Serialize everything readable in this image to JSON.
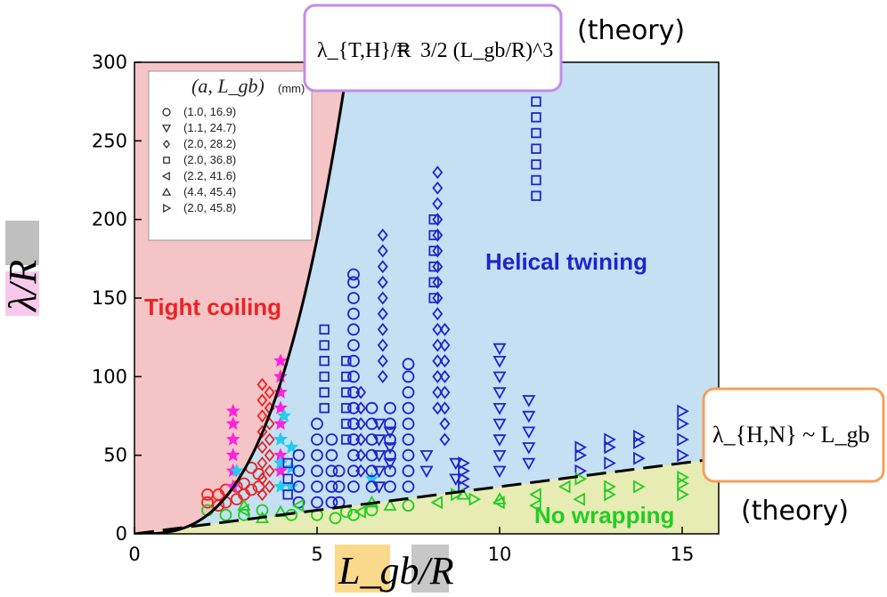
{
  "chart_data": {
    "type": "scatter",
    "xlabel": "L_gb/R",
    "ylabel": "λ/R",
    "xlim": [
      0,
      16
    ],
    "ylim": [
      0,
      300
    ],
    "xticks": [
      0,
      5,
      10,
      15
    ],
    "yticks": [
      0,
      50,
      100,
      150,
      200,
      250,
      300
    ],
    "regions": {
      "tight": {
        "label": "Tight coiling",
        "color": "#f4c4c6"
      },
      "helical": {
        "label": "Helical twining",
        "color": "#c4e0f2"
      },
      "nowrap": {
        "label": "No wrapping",
        "color": "#e6ecb3"
      }
    },
    "curves": {
      "theory_TH": {
        "a": 1.5,
        "exponent": 3,
        "label_lhs": "λ_{T,H}/R",
        "label_rhs": "3/2 (L_gb/R)^3",
        "note": "(theory)"
      },
      "theory_HN": {
        "slope": 3.0,
        "label": "λ_{H,N} ~ L_gb",
        "note": "(theory)"
      }
    },
    "legend": {
      "title": "(a, L_gb)",
      "unit": "(mm)",
      "entries": [
        {
          "marker": "circle",
          "label": "(1.0, 16.9)"
        },
        {
          "marker": "triangle-down",
          "label": "(1.1, 24.7)"
        },
        {
          "marker": "diamond",
          "label": "(2.0, 28.2)"
        },
        {
          "marker": "square",
          "label": "(2.0, 36.8)"
        },
        {
          "marker": "triangle-left",
          "label": "(2.2, 41.6)"
        },
        {
          "marker": "triangle-up",
          "label": "(4.4, 45.4)"
        },
        {
          "marker": "triangle-right",
          "label": "(2.0, 45.8)"
        }
      ]
    },
    "colors": {
      "tight": "#ee2222",
      "helical": "#2222cc",
      "nowrap": "#22cc22",
      "marker": "#ff22dd",
      "cyan": "#22ccee"
    },
    "series": [
      {
        "marker": "circle",
        "color": "#ee2222",
        "points": [
          [
            2,
            20
          ],
          [
            2,
            25
          ],
          [
            2.3,
            18
          ],
          [
            2.3,
            25
          ],
          [
            2.5,
            20
          ],
          [
            2.5,
            28
          ],
          [
            2.8,
            22
          ],
          [
            2.8,
            30
          ],
          [
            3,
            25
          ],
          [
            3,
            32
          ],
          [
            3.2,
            28
          ],
          [
            3.2,
            42
          ],
          [
            3.4,
            30
          ],
          [
            3.4,
            38
          ]
        ]
      },
      {
        "marker": "diamond",
        "color": "#ee2222",
        "points": [
          [
            3.5,
            25
          ],
          [
            3.5,
            35
          ],
          [
            3.5,
            45
          ],
          [
            3.5,
            55
          ],
          [
            3.5,
            65
          ],
          [
            3.5,
            75
          ],
          [
            3.5,
            85
          ],
          [
            3.5,
            95
          ],
          [
            3.7,
            30
          ],
          [
            3.7,
            40
          ],
          [
            3.7,
            50
          ],
          [
            3.7,
            60
          ],
          [
            3.7,
            70
          ],
          [
            3.7,
            80
          ],
          [
            3.7,
            90
          ]
        ]
      },
      {
        "marker": "star",
        "color": "#ff22dd",
        "points": [
          [
            2.7,
            30
          ],
          [
            2.7,
            40
          ],
          [
            2.7,
            50
          ],
          [
            2.7,
            60
          ],
          [
            2.7,
            70
          ],
          [
            2.7,
            78
          ],
          [
            4,
            40
          ],
          [
            4,
            50
          ],
          [
            4,
            60
          ],
          [
            4,
            70
          ],
          [
            4,
            80
          ],
          [
            4,
            90
          ],
          [
            4,
            100
          ],
          [
            4,
            110
          ]
        ]
      },
      {
        "marker": "star",
        "color": "#22ccee",
        "points": [
          [
            2.8,
            40
          ],
          [
            4,
            30
          ],
          [
            4,
            45
          ],
          [
            4,
            60
          ],
          [
            4.3,
            30
          ],
          [
            4.3,
            42
          ],
          [
            4.3,
            55
          ],
          [
            6.5,
            35
          ],
          [
            4.1,
            75
          ]
        ]
      },
      {
        "marker": "circle",
        "color": "#2222cc",
        "points": [
          [
            4.5,
            20
          ],
          [
            4.5,
            30
          ],
          [
            4.5,
            40
          ],
          [
            4.5,
            50
          ],
          [
            5,
            20
          ],
          [
            5,
            30
          ],
          [
            5,
            40
          ],
          [
            5,
            50
          ],
          [
            5,
            60
          ],
          [
            5,
            70
          ],
          [
            5.4,
            20
          ],
          [
            5.4,
            30
          ],
          [
            5.4,
            40
          ],
          [
            5.4,
            50
          ],
          [
            5.4,
            60
          ],
          [
            5.6,
            20
          ],
          [
            5.6,
            30
          ],
          [
            5.6,
            40
          ],
          [
            6,
            30
          ],
          [
            6,
            40
          ],
          [
            6,
            50
          ],
          [
            6,
            60
          ],
          [
            6,
            70
          ],
          [
            6,
            80
          ],
          [
            6,
            90
          ],
          [
            6,
            100
          ],
          [
            6,
            110
          ],
          [
            6,
            120
          ],
          [
            6,
            130
          ],
          [
            6,
            140
          ],
          [
            6,
            150
          ],
          [
            6,
            160
          ],
          [
            6,
            165
          ],
          [
            6.5,
            30
          ],
          [
            6.5,
            40
          ],
          [
            6.5,
            50
          ],
          [
            6.5,
            60
          ],
          [
            6.5,
            70
          ],
          [
            6.5,
            80
          ],
          [
            7,
            30
          ],
          [
            7,
            40
          ],
          [
            7,
            50
          ],
          [
            7,
            60
          ],
          [
            7,
            70
          ],
          [
            7,
            80
          ],
          [
            7.5,
            30
          ],
          [
            7.5,
            40
          ],
          [
            7.5,
            50
          ],
          [
            7.5,
            60
          ],
          [
            7.5,
            70
          ],
          [
            7.5,
            80
          ],
          [
            7.5,
            90
          ],
          [
            7.5,
            100
          ],
          [
            7.5,
            108
          ]
        ]
      },
      {
        "marker": "square",
        "color": "#2222cc",
        "points": [
          [
            4.2,
            25
          ],
          [
            4.2,
            35
          ],
          [
            4.2,
            45
          ],
          [
            5.2,
            80
          ],
          [
            5.2,
            90
          ],
          [
            5.2,
            100
          ],
          [
            5.2,
            110
          ],
          [
            5.2,
            120
          ],
          [
            5.2,
            130
          ],
          [
            5.8,
            60
          ],
          [
            5.8,
            70
          ],
          [
            5.8,
            80
          ],
          [
            5.8,
            90
          ],
          [
            5.8,
            100
          ],
          [
            5.8,
            110
          ],
          [
            8.2,
            150
          ],
          [
            8.2,
            160
          ],
          [
            8.2,
            170
          ],
          [
            8.2,
            180
          ],
          [
            8.2,
            190
          ],
          [
            8.2,
            200
          ],
          [
            11,
            215
          ],
          [
            11,
            225
          ],
          [
            11,
            235
          ],
          [
            11,
            245
          ],
          [
            11,
            255
          ],
          [
            11,
            265
          ],
          [
            11,
            275
          ],
          [
            11,
            285
          ]
        ]
      },
      {
        "marker": "diamond",
        "color": "#2222cc",
        "points": [
          [
            6.8,
            100
          ],
          [
            6.8,
            110
          ],
          [
            6.8,
            120
          ],
          [
            6.8,
            130
          ],
          [
            6.8,
            140
          ],
          [
            6.8,
            150
          ],
          [
            6.8,
            160
          ],
          [
            6.8,
            170
          ],
          [
            6.8,
            180
          ],
          [
            6.8,
            190
          ],
          [
            8.3,
            80
          ],
          [
            8.3,
            90
          ],
          [
            8.3,
            100
          ],
          [
            8.3,
            110
          ],
          [
            8.3,
            120
          ],
          [
            8.3,
            130
          ],
          [
            8.3,
            140
          ],
          [
            8.3,
            150
          ],
          [
            8.3,
            160
          ],
          [
            8.3,
            170
          ],
          [
            8.3,
            180
          ],
          [
            8.3,
            190
          ],
          [
            8.3,
            200
          ],
          [
            8.3,
            210
          ],
          [
            8.3,
            220
          ],
          [
            8.3,
            230
          ],
          [
            8.5,
            60
          ],
          [
            8.5,
            70
          ],
          [
            8.5,
            80
          ],
          [
            8.5,
            90
          ],
          [
            8.5,
            100
          ],
          [
            8.5,
            110
          ],
          [
            8.5,
            120
          ],
          [
            8.5,
            130
          ],
          [
            6.2,
            40
          ],
          [
            6.2,
            50
          ],
          [
            6.2,
            60
          ],
          [
            6.2,
            70
          ],
          [
            6.2,
            80
          ],
          [
            6.2,
            90
          ]
        ]
      },
      {
        "marker": "triangle-down",
        "color": "#2222cc",
        "points": [
          [
            6.7,
            30
          ],
          [
            6.7,
            40
          ],
          [
            6.7,
            50
          ],
          [
            6.7,
            60
          ],
          [
            6.7,
            70
          ],
          [
            7,
            45
          ],
          [
            7,
            55
          ],
          [
            7,
            65
          ],
          [
            8,
            40
          ],
          [
            8,
            50
          ],
          [
            8.8,
            35
          ],
          [
            8.8,
            45
          ],
          [
            10,
            40
          ],
          [
            10,
            50
          ],
          [
            10,
            60
          ],
          [
            10,
            70
          ],
          [
            10,
            80
          ],
          [
            10,
            90
          ],
          [
            10,
            100
          ],
          [
            10,
            110
          ],
          [
            10,
            118
          ],
          [
            10.8,
            45
          ],
          [
            10.8,
            55
          ],
          [
            10.8,
            65
          ],
          [
            10.8,
            75
          ],
          [
            10.8,
            85
          ]
        ]
      },
      {
        "marker": "triangle-right",
        "color": "#2222cc",
        "points": [
          [
            9,
            30
          ],
          [
            9,
            35
          ],
          [
            9,
            40
          ],
          [
            9,
            45
          ],
          [
            12.2,
            40
          ],
          [
            12.2,
            50
          ],
          [
            12.2,
            55
          ],
          [
            13,
            45
          ],
          [
            13,
            55
          ],
          [
            13,
            60
          ],
          [
            13.8,
            48
          ],
          [
            13.8,
            58
          ],
          [
            13.8,
            62
          ],
          [
            15,
            50
          ],
          [
            15,
            60
          ],
          [
            15,
            70
          ],
          [
            15,
            78
          ]
        ]
      },
      {
        "marker": "circle",
        "color": "#22cc22",
        "points": [
          [
            2,
            15
          ],
          [
            2.5,
            12
          ],
          [
            3,
            12
          ],
          [
            3.5,
            15
          ],
          [
            4.3,
            12
          ],
          [
            5,
            12
          ],
          [
            5.5,
            10
          ],
          [
            6,
            12
          ],
          [
            6.5,
            15
          ],
          [
            7.5,
            18
          ],
          [
            5.8,
            14
          ]
        ]
      },
      {
        "marker": "triangle-up",
        "color": "#22cc22",
        "points": [
          [
            3,
            18
          ],
          [
            3.5,
            10
          ],
          [
            4,
            14
          ],
          [
            6.5,
            20
          ],
          [
            7,
            18
          ],
          [
            9,
            25
          ],
          [
            10,
            22
          ]
        ]
      },
      {
        "marker": "triangle-right",
        "color": "#22cc22",
        "points": [
          [
            8.8,
            25
          ],
          [
            9.3,
            22
          ],
          [
            12.2,
            35
          ],
          [
            13,
            25
          ],
          [
            13,
            30
          ],
          [
            13.8,
            30
          ],
          [
            15,
            25
          ],
          [
            15,
            32
          ],
          [
            15,
            36
          ]
        ]
      },
      {
        "marker": "triangle-left",
        "color": "#22cc22",
        "points": [
          [
            3,
            15
          ],
          [
            4.5,
            18
          ],
          [
            6.2,
            14
          ],
          [
            8.3,
            20
          ],
          [
            10,
            20
          ],
          [
            11,
            18
          ],
          [
            11,
            25
          ],
          [
            11.8,
            30
          ],
          [
            12.2,
            22
          ]
        ]
      }
    ]
  }
}
